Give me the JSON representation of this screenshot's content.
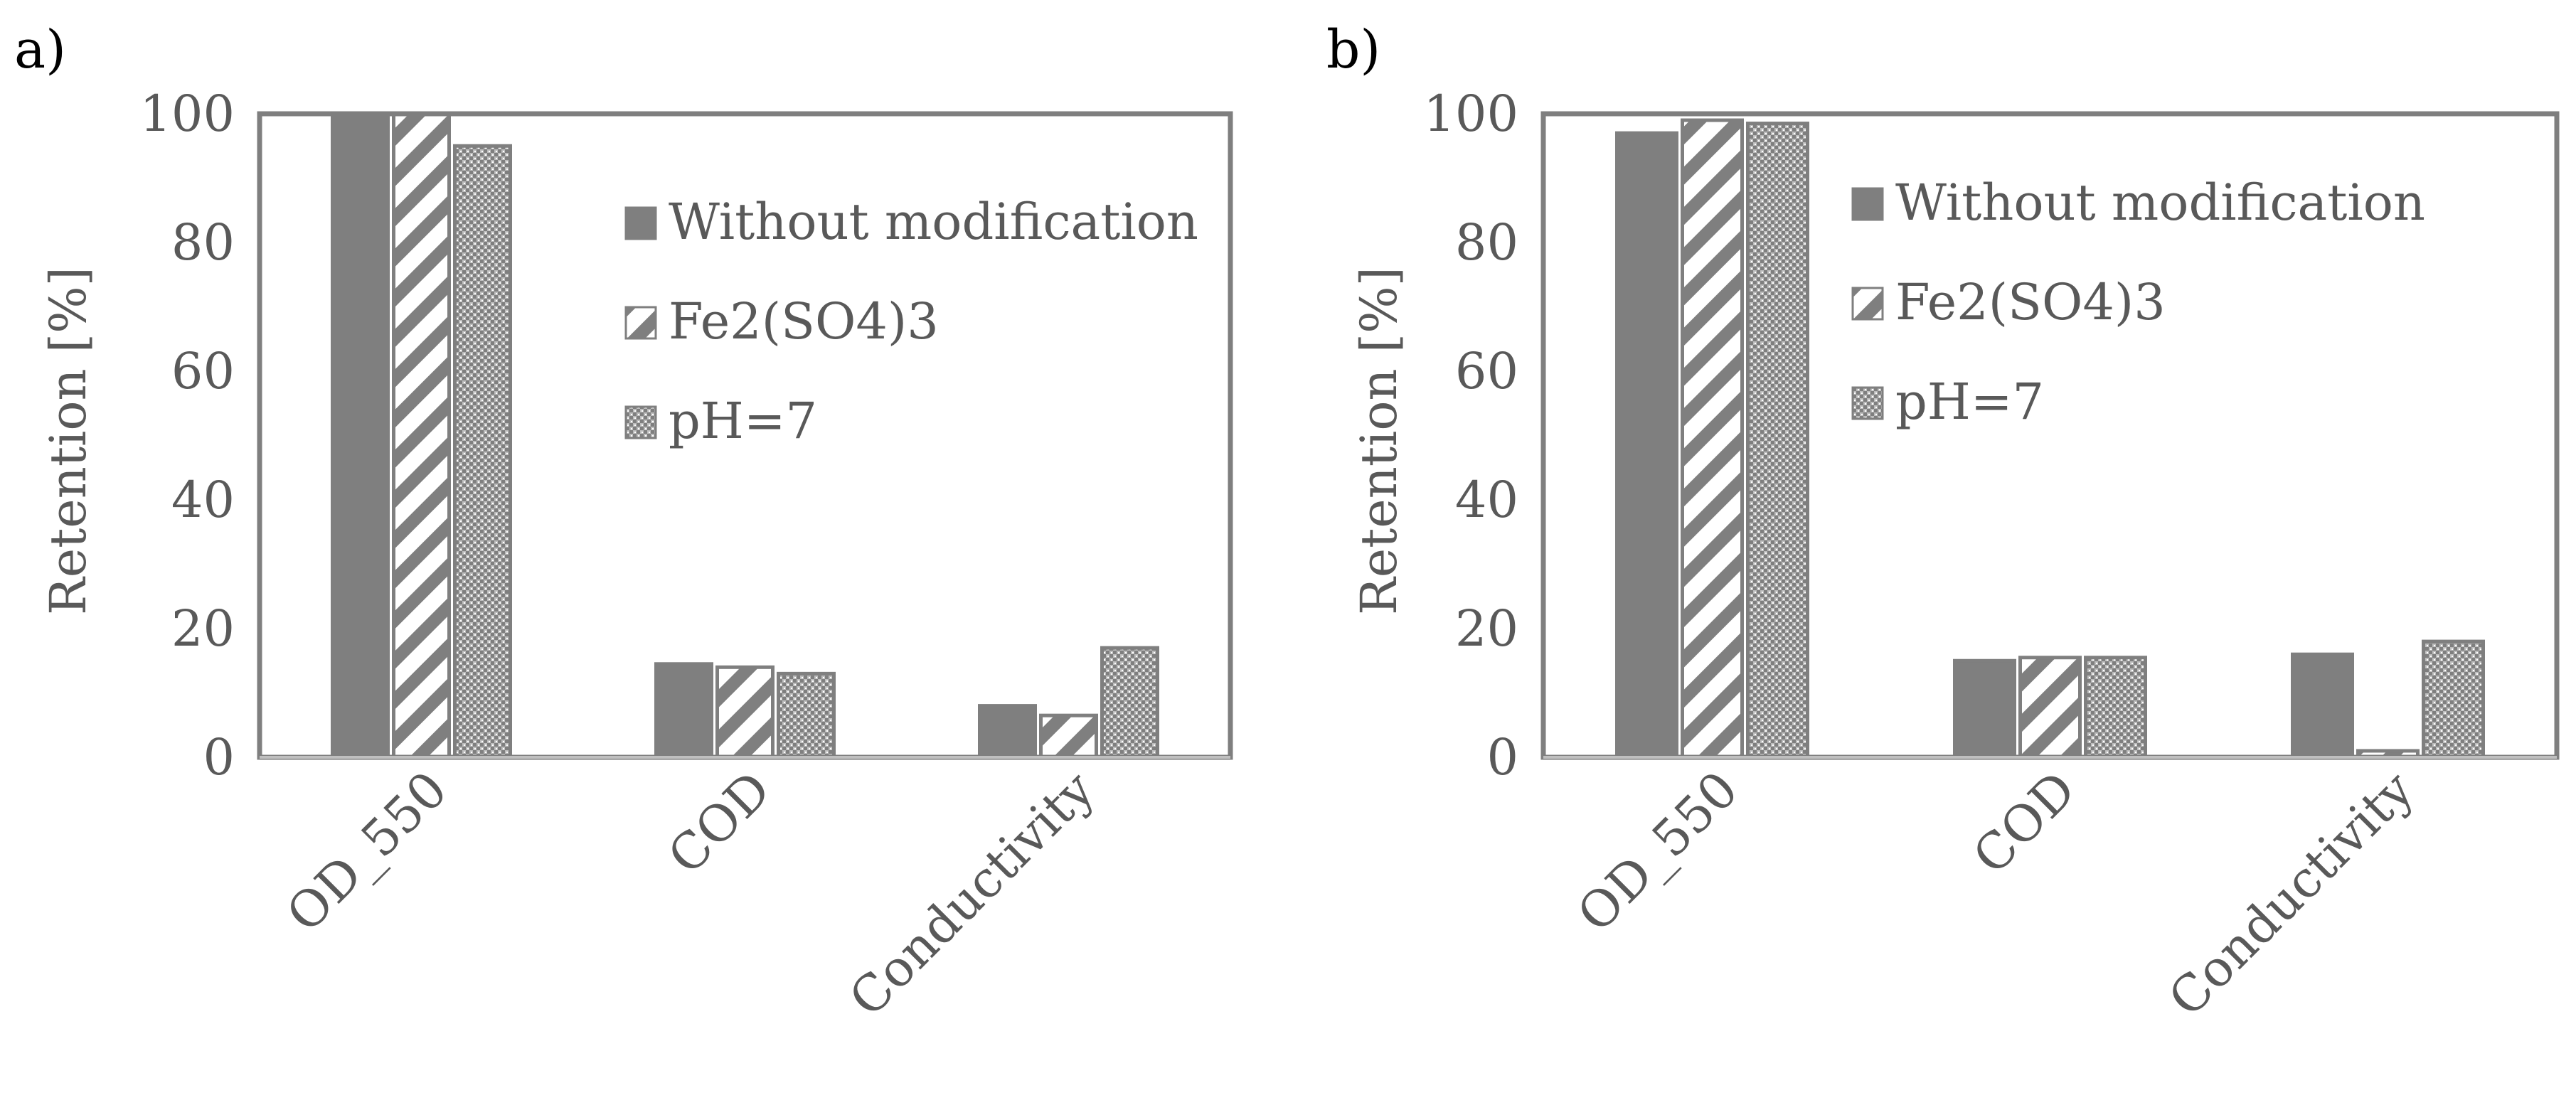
{
  "figure": {
    "colors": {
      "bar_fill": "#7f7f7f",
      "bar_stroke": "#7f7f7f",
      "plot_border": "#7f7f7f",
      "text": "#595959",
      "panel_letter": "#000000",
      "hatch_bg": "#ffffff"
    }
  },
  "chart_data": [
    {
      "type": "bar",
      "panel_label": "a)",
      "ylabel": "Retention [%]",
      "xlabel": "",
      "ylim": [
        0,
        100
      ],
      "yticks": [
        0,
        20,
        40,
        60,
        80,
        100
      ],
      "categories": [
        "OD_550",
        "COD",
        "Conductivity"
      ],
      "legend_position": "top-right",
      "series": [
        {
          "name": "Without modification",
          "pattern": "solid",
          "values": [
            100,
            14.5,
            8
          ]
        },
        {
          "name": "Fe2(SO4)3",
          "pattern": "diagonal-hatch",
          "values": [
            100,
            14,
            6.5
          ]
        },
        {
          "name": "pH=7",
          "pattern": "dotted-grid",
          "values": [
            95,
            13,
            17
          ]
        }
      ]
    },
    {
      "type": "bar",
      "panel_label": "b)",
      "ylabel": "Retention [%]",
      "xlabel": "",
      "ylim": [
        0,
        100
      ],
      "yticks": [
        0,
        20,
        40,
        60,
        80,
        100
      ],
      "categories": [
        "OD_550",
        "COD",
        "Conductivity"
      ],
      "legend_position": "top-right",
      "series": [
        {
          "name": "Without modification",
          "pattern": "solid",
          "values": [
            97,
            15,
            16
          ]
        },
        {
          "name": "Fe2(SO4)3",
          "pattern": "diagonal-hatch",
          "values": [
            99,
            15.5,
            1
          ]
        },
        {
          "name": "pH=7",
          "pattern": "dotted-grid",
          "values": [
            98.5,
            15.5,
            18
          ]
        }
      ]
    }
  ]
}
